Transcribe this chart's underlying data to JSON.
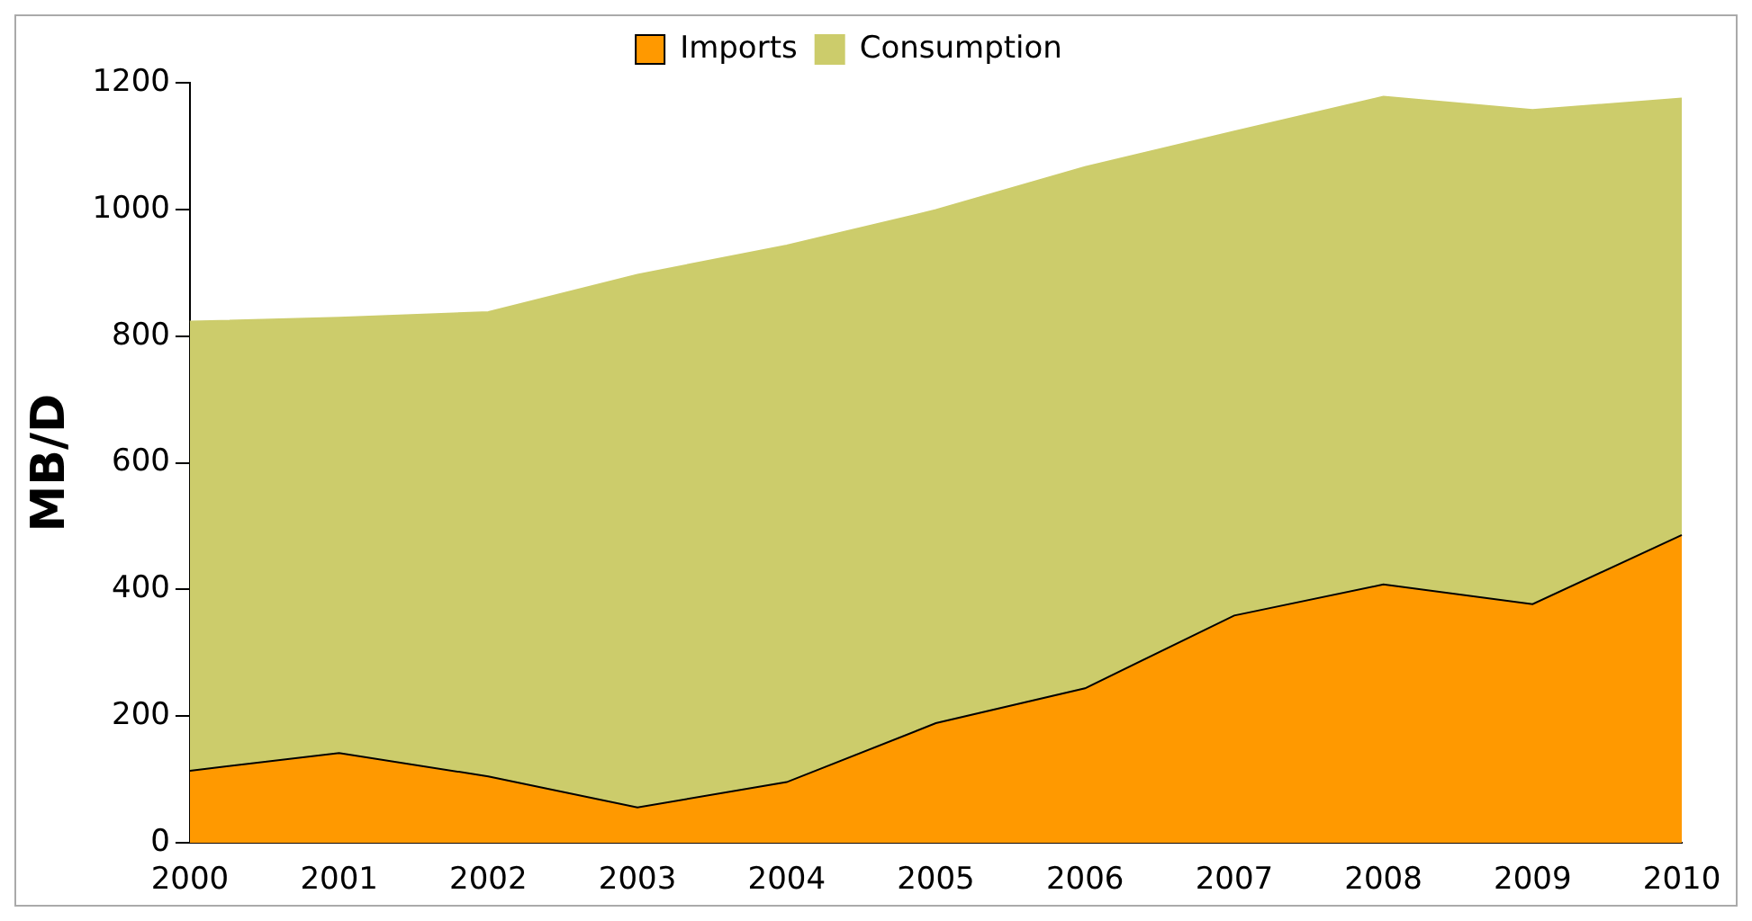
{
  "chart_data": {
    "type": "area",
    "categories": [
      "2000",
      "2001",
      "2002",
      "2003",
      "2004",
      "2005",
      "2006",
      "2007",
      "2008",
      "2009",
      "2010"
    ],
    "ylabel": "MB/D",
    "ylim": [
      0,
      1200
    ],
    "yticks": [
      0,
      200,
      400,
      600,
      800,
      1000,
      1200
    ],
    "grid": false,
    "legend": "top",
    "series": [
      {
        "name": "Imports",
        "color": "#ff9900",
        "values": [
          114,
          142,
          105,
          56,
          96,
          189,
          244,
          359,
          408,
          377,
          486
        ]
      },
      {
        "name": "Consumption",
        "color": "#cccc6b",
        "values": [
          823,
          829,
          838,
          897,
          943,
          999,
          1067,
          1123,
          1178,
          1157,
          1175
        ]
      }
    ]
  }
}
